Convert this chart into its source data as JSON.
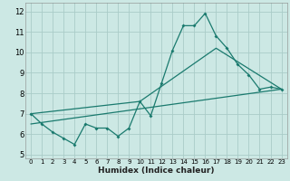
{
  "title": "",
  "xlabel": "Humidex (Indice chaleur)",
  "bg_color": "#cce8e4",
  "grid_color": "#aaccc8",
  "line_color": "#1a7a6e",
  "xlim": [
    -0.5,
    23.5
  ],
  "ylim": [
    4.8,
    12.4
  ],
  "yticks": [
    5,
    6,
    7,
    8,
    9,
    10,
    11,
    12
  ],
  "xticks": [
    0,
    1,
    2,
    3,
    4,
    5,
    6,
    7,
    8,
    9,
    10,
    11,
    12,
    13,
    14,
    15,
    16,
    17,
    18,
    19,
    20,
    21,
    22,
    23
  ],
  "line1_x": [
    0,
    1,
    2,
    3,
    4,
    5,
    6,
    7,
    8,
    9,
    10,
    11,
    12,
    13,
    14,
    15,
    16,
    17,
    18,
    19,
    20,
    21,
    22,
    23
  ],
  "line1_y": [
    7.0,
    6.5,
    6.1,
    5.8,
    5.5,
    6.5,
    6.3,
    6.3,
    5.9,
    6.3,
    7.6,
    6.9,
    8.5,
    10.1,
    11.3,
    11.3,
    11.9,
    10.8,
    10.2,
    9.4,
    8.9,
    8.2,
    8.3,
    8.2
  ],
  "line2_x": [
    0,
    10,
    17,
    23
  ],
  "line2_y": [
    7.0,
    7.6,
    10.2,
    8.2
  ],
  "line3_x": [
    0,
    23
  ],
  "line3_y": [
    6.5,
    8.2
  ],
  "marker": "D",
  "markersize": 2.0,
  "linewidth": 0.9,
  "xlabel_fontsize": 6.5,
  "tick_fontsize": 5.0,
  "ytick_fontsize": 6.0
}
